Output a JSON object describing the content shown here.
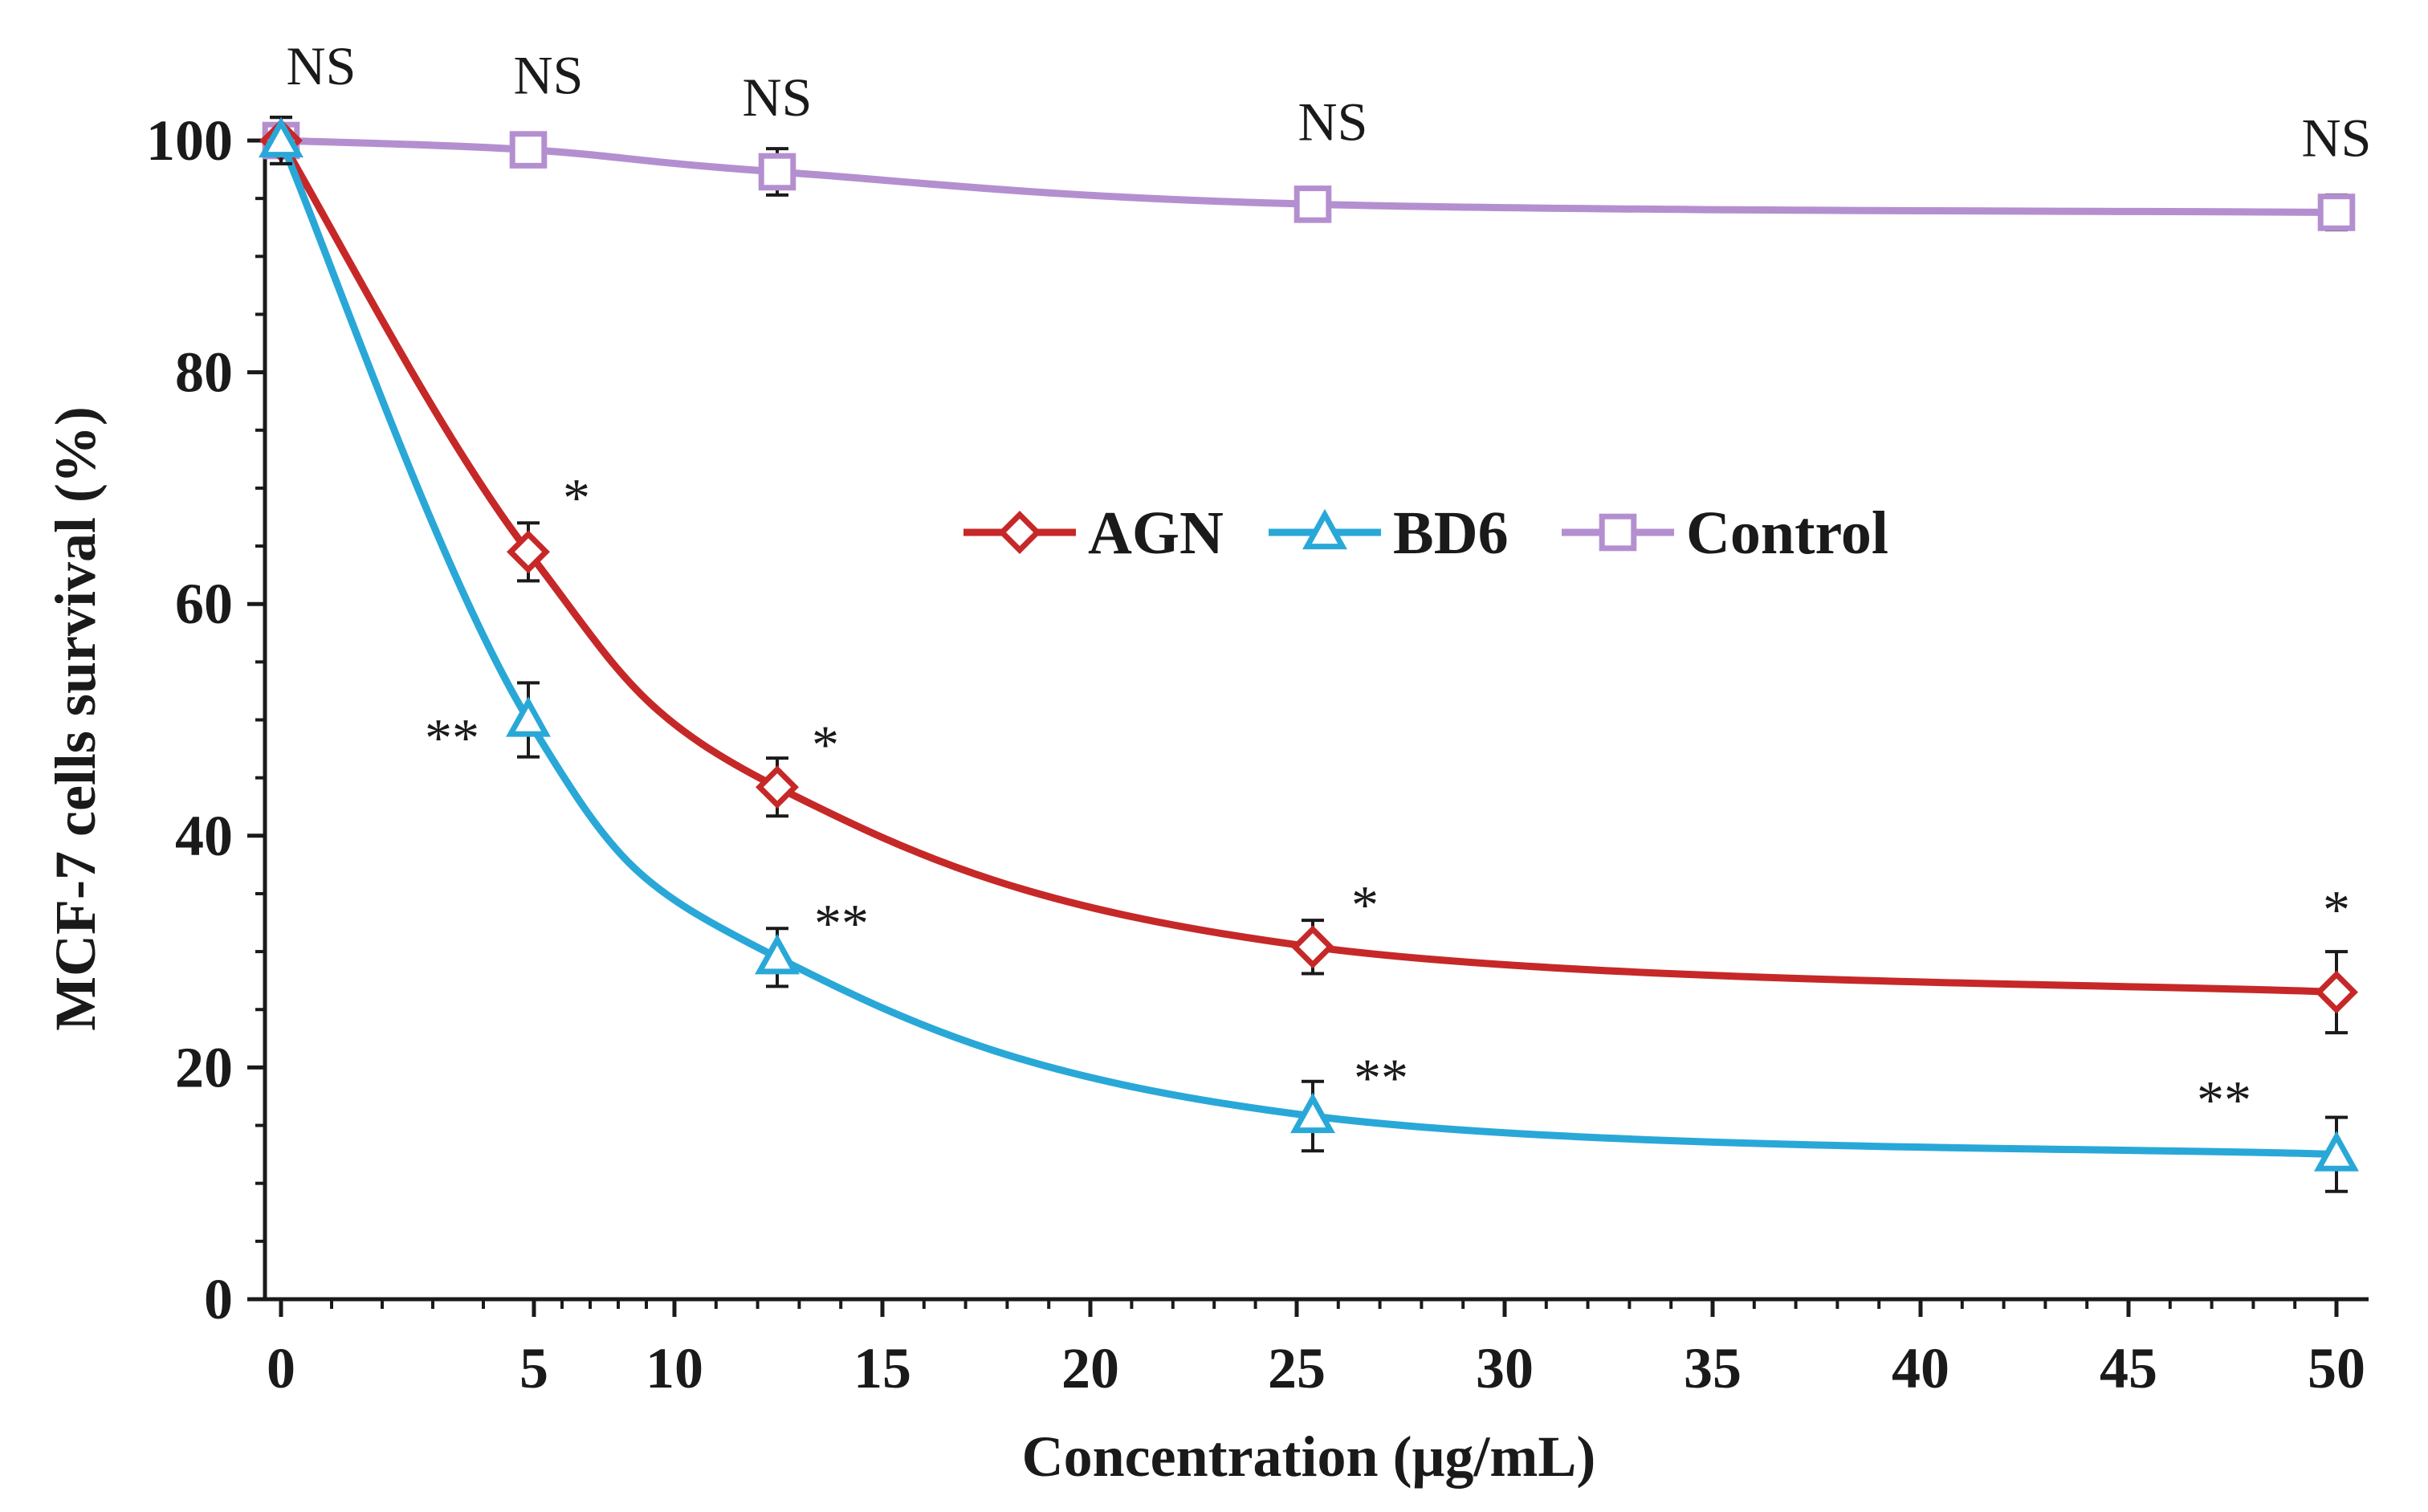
{
  "chart_data": {
    "type": "line",
    "title": "",
    "xlabel": "Concentration  (μg/mL)",
    "ylabel": "MCF-7 cells survival (%)",
    "x_tick_labels": [
      "0",
      "5",
      "10",
      "15",
      "20",
      "25",
      "30",
      "35",
      "40",
      "45",
      "50"
    ],
    "y_tick_labels": [
      "0",
      "20",
      "40",
      "60",
      "80",
      "100"
    ],
    "ylim": [
      0,
      100
    ],
    "x_categories": [
      "0",
      "6.25",
      "12.5",
      "25",
      "50"
    ],
    "legend_position": "center-right",
    "series": [
      {
        "name": "AGN",
        "color": "#c62828",
        "marker": "diamond",
        "values": [
          100,
          64.5,
          44.2,
          30.4,
          26.5
        ],
        "errors": [
          2,
          2.5,
          2.5,
          2.3,
          3.5
        ],
        "annotations": [
          "",
          "*",
          "*",
          "*",
          "*"
        ]
      },
      {
        "name": "BD6",
        "color": "#29a8d8",
        "marker": "triangle",
        "values": [
          100,
          50,
          29.5,
          15.8,
          12.5
        ],
        "errors": [
          2,
          3.2,
          2.5,
          3,
          3.2
        ],
        "annotations": [
          "",
          "**",
          "**",
          "**",
          "**"
        ]
      },
      {
        "name": "Control",
        "color": "#b48fd0",
        "marker": "square",
        "values": [
          100,
          99.2,
          97.3,
          94.5,
          93.8
        ],
        "errors": [
          1,
          0.8,
          2,
          0.8,
          1.5
        ],
        "annotations": [
          "NS",
          "NS",
          "NS",
          "NS",
          "NS"
        ]
      }
    ]
  }
}
